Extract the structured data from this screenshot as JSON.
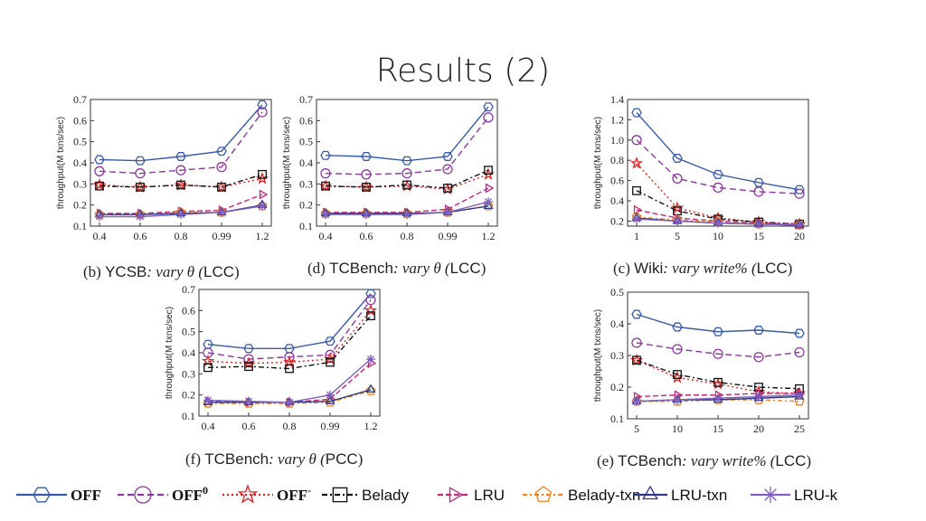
{
  "slide": {
    "title": "Results (2)"
  },
  "series_styles": [
    {
      "name": "OFF",
      "color": "#3a5aa8",
      "dash": "",
      "marker": "hexagon",
      "legend_label": "OFF",
      "serif": true
    },
    {
      "name": "OFF0",
      "color": "#8a3a9a",
      "dash": "7,4",
      "marker": "circle",
      "legend_label": "OFF",
      "legend_sup": "0",
      "serif": true
    },
    {
      "name": "OFF-",
      "color": "#e02020",
      "dash": "2,3",
      "marker": "star",
      "legend_label": "OFF",
      "legend_sup": "-",
      "serif": true
    },
    {
      "name": "Belady",
      "color": "#111111",
      "dash": "6,3,2,3",
      "marker": "square",
      "legend_label": "Belady",
      "serif": false
    },
    {
      "name": "LRU",
      "color": "#c02878",
      "dash": "6,3",
      "marker": "triangle-right",
      "legend_label": "LRU",
      "serif": false
    },
    {
      "name": "Belady-txn",
      "color": "#f08020",
      "dash": "5,3,2,3",
      "marker": "pentagon",
      "legend_label": "Belady-txn",
      "serif": false
    },
    {
      "name": "LRU-txn",
      "color": "#303a80",
      "dash": "",
      "marker": "triangle-up",
      "legend_label": "LRU-txn",
      "serif": false
    },
    {
      "name": "LRU-k",
      "color": "#8060c0",
      "dash": "",
      "marker": "asterisk",
      "legend_label": "LRU-k",
      "serif": false
    }
  ],
  "chart_data": [
    {
      "id": "b",
      "type": "line",
      "caption": {
        "pre": "(b) ",
        "name": "YCSB",
        "rest": ": vary θ (",
        "rest_extra": "LCC",
        "post": ")"
      },
      "ylabel": "throughput(M txns/sec)",
      "categories": [
        "0.4",
        "0.6",
        "0.8",
        "0.99",
        "1.2"
      ],
      "ylim": [
        0.1,
        0.7
      ],
      "yticks": [
        "0.1",
        "0.2",
        "0.3",
        "0.4",
        "0.5",
        "0.6",
        "0.7"
      ],
      "series": [
        {
          "name": "OFF",
          "values": [
            0.415,
            0.41,
            0.43,
            0.455,
            0.675
          ]
        },
        {
          "name": "OFF0",
          "values": [
            0.36,
            0.35,
            0.365,
            0.38,
            0.64
          ]
        },
        {
          "name": "OFF-",
          "values": [
            0.295,
            0.285,
            0.295,
            0.285,
            0.325
          ]
        },
        {
          "name": "Belady",
          "values": [
            0.29,
            0.285,
            0.295,
            0.285,
            0.345
          ]
        },
        {
          "name": "LRU",
          "values": [
            0.16,
            0.16,
            0.17,
            0.175,
            0.25
          ]
        },
        {
          "name": "Belady-txn",
          "values": [
            0.155,
            0.155,
            0.165,
            0.165,
            0.195
          ]
        },
        {
          "name": "LRU-txn",
          "values": [
            0.155,
            0.155,
            0.16,
            0.165,
            0.2
          ]
        },
        {
          "name": "LRU-k",
          "values": [
            0.145,
            0.145,
            0.155,
            0.165,
            0.195
          ]
        }
      ]
    },
    {
      "id": "d",
      "type": "line",
      "caption": {
        "pre": "(d) ",
        "name": "TCBench",
        "rest": ": vary θ (",
        "rest_extra": "LCC",
        "post": ")"
      },
      "ylabel": "throughput(M txns/sec)",
      "categories": [
        "0.4",
        "0.6",
        "0.8",
        "0.99",
        "1.2"
      ],
      "ylim": [
        0.1,
        0.7
      ],
      "yticks": [
        "0.1",
        "0.2",
        "0.3",
        "0.4",
        "0.5",
        "0.6",
        "0.7"
      ],
      "series": [
        {
          "name": "OFF",
          "values": [
            0.435,
            0.43,
            0.41,
            0.43,
            0.665
          ]
        },
        {
          "name": "OFF0",
          "values": [
            0.35,
            0.345,
            0.35,
            0.37,
            0.615
          ]
        },
        {
          "name": "OFF-",
          "values": [
            0.29,
            0.285,
            0.29,
            0.275,
            0.345
          ]
        },
        {
          "name": "Belady",
          "values": [
            0.29,
            0.285,
            0.295,
            0.28,
            0.365
          ]
        },
        {
          "name": "LRU",
          "values": [
            0.165,
            0.165,
            0.165,
            0.18,
            0.28
          ]
        },
        {
          "name": "Belady-txn",
          "values": [
            0.16,
            0.16,
            0.16,
            0.165,
            0.195
          ]
        },
        {
          "name": "LRU-txn",
          "values": [
            0.16,
            0.16,
            0.16,
            0.165,
            0.195
          ]
        },
        {
          "name": "LRU-k",
          "values": [
            0.155,
            0.155,
            0.155,
            0.165,
            0.215
          ]
        }
      ]
    },
    {
      "id": "c",
      "type": "line",
      "caption": {
        "pre": "(c) ",
        "name": "Wiki",
        "rest": ": vary write% (",
        "rest_extra": "LCC",
        "post": ")"
      },
      "ylabel": "throughput(M txns/sec)",
      "categories": [
        "1",
        "5",
        "10",
        "15",
        "20"
      ],
      "ylim": [
        0.15,
        1.4
      ],
      "yticks": [
        "0.2",
        "0.4",
        "0.6",
        "0.8",
        "1.0",
        "1.2",
        "1.4"
      ],
      "series": [
        {
          "name": "OFF",
          "values": [
            1.27,
            0.82,
            0.66,
            0.58,
            0.51
          ]
        },
        {
          "name": "OFF0",
          "values": [
            1.0,
            0.62,
            0.53,
            0.49,
            0.47
          ]
        },
        {
          "name": "OFF-",
          "values": [
            0.77,
            0.33,
            0.23,
            0.19,
            0.17
          ]
        },
        {
          "name": "Belady",
          "values": [
            0.5,
            0.3,
            0.22,
            0.19,
            0.17
          ]
        },
        {
          "name": "LRU",
          "values": [
            0.31,
            0.23,
            0.2,
            0.18,
            0.17
          ]
        },
        {
          "name": "Belady-txn",
          "values": [
            0.24,
            0.21,
            0.19,
            0.17,
            0.16
          ]
        },
        {
          "name": "LRU-txn",
          "values": [
            0.23,
            0.2,
            0.18,
            0.17,
            0.16
          ]
        },
        {
          "name": "LRU-k",
          "values": [
            0.22,
            0.2,
            0.18,
            0.17,
            0.16
          ]
        }
      ]
    },
    {
      "id": "f",
      "type": "line",
      "caption": {
        "pre": "(f) ",
        "name": "TCBench",
        "rest": ": vary θ (",
        "rest_extra": "PCC",
        "post": ")"
      },
      "ylabel": "throughput(M txns/sec)",
      "categories": [
        "0.4",
        "0.6",
        "0.8",
        "0.99",
        "1.2"
      ],
      "ylim": [
        0.1,
        0.7
      ],
      "yticks": [
        "0.1",
        "0.2",
        "0.3",
        "0.4",
        "0.5",
        "0.6",
        "0.7"
      ],
      "series": [
        {
          "name": "OFF",
          "values": [
            0.44,
            0.42,
            0.42,
            0.455,
            0.68
          ]
        },
        {
          "name": "OFF0",
          "values": [
            0.4,
            0.37,
            0.38,
            0.39,
            0.65
          ]
        },
        {
          "name": "OFF-",
          "values": [
            0.36,
            0.35,
            0.355,
            0.37,
            0.6
          ]
        },
        {
          "name": "Belady",
          "values": [
            0.33,
            0.335,
            0.325,
            0.355,
            0.575
          ]
        },
        {
          "name": "LRU",
          "values": [
            0.17,
            0.165,
            0.165,
            0.18,
            0.35
          ]
        },
        {
          "name": "Belady-txn",
          "values": [
            0.16,
            0.16,
            0.16,
            0.165,
            0.22
          ]
        },
        {
          "name": "LRU-txn",
          "values": [
            0.165,
            0.165,
            0.165,
            0.17,
            0.225
          ]
        },
        {
          "name": "LRU-k",
          "values": [
            0.175,
            0.17,
            0.165,
            0.2,
            0.37
          ]
        }
      ]
    },
    {
      "id": "e",
      "type": "line",
      "caption": {
        "pre": "(e) ",
        "name": "TCBench",
        "rest": ": vary write% (",
        "rest_extra": "LCC",
        "post": ")"
      },
      "ylabel": "throughput(M txns/sec)",
      "categories": [
        "5",
        "10",
        "15",
        "20",
        "25"
      ],
      "ylim": [
        0.1,
        0.5
      ],
      "yticks": [
        "0.1",
        "0.2",
        "0.3",
        "0.4",
        "0.5"
      ],
      "series": [
        {
          "name": "OFF",
          "values": [
            0.43,
            0.39,
            0.375,
            0.38,
            0.37
          ]
        },
        {
          "name": "OFF0",
          "values": [
            0.34,
            0.32,
            0.305,
            0.295,
            0.31
          ]
        },
        {
          "name": "OFF-",
          "values": [
            0.285,
            0.23,
            0.21,
            0.185,
            0.18
          ]
        },
        {
          "name": "Belady",
          "values": [
            0.285,
            0.24,
            0.215,
            0.2,
            0.195
          ]
        },
        {
          "name": "LRU",
          "values": [
            0.17,
            0.175,
            0.175,
            0.18,
            0.18
          ]
        },
        {
          "name": "Belady-txn",
          "values": [
            0.155,
            0.155,
            0.16,
            0.16,
            0.155
          ]
        },
        {
          "name": "LRU-txn",
          "values": [
            0.155,
            0.16,
            0.16,
            0.165,
            0.17
          ]
        },
        {
          "name": "LRU-k",
          "values": [
            0.155,
            0.16,
            0.165,
            0.17,
            0.175
          ]
        }
      ]
    }
  ]
}
